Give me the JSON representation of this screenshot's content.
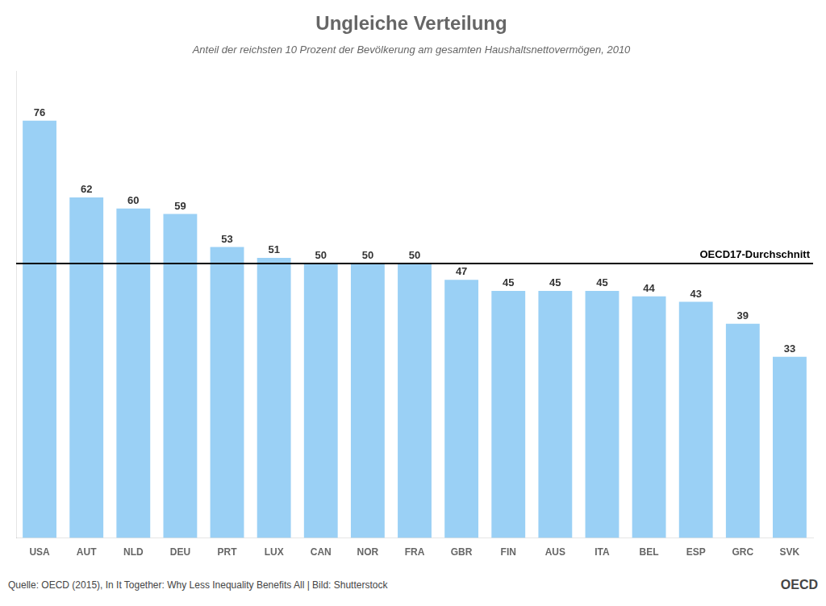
{
  "chart_data": {
    "type": "bar",
    "title": "Ungleiche Verteilung",
    "subtitle": "Anteil der reichsten 10 Prozent der Bevölkerung am gesamten Haushaltsnettovermögen, 2010",
    "categories": [
      "USA",
      "AUT",
      "NLD",
      "DEU",
      "PRT",
      "LUX",
      "CAN",
      "NOR",
      "FRA",
      "GBR",
      "FIN",
      "AUS",
      "ITA",
      "BEL",
      "ESP",
      "GRC",
      "SVK"
    ],
    "values": [
      76,
      62,
      60,
      59,
      53,
      51,
      50,
      50,
      50,
      47,
      45,
      45,
      45,
      44,
      43,
      39,
      33
    ],
    "ylim": [
      0,
      85
    ],
    "grid": false,
    "tick_labels": "x",
    "data_labels": true,
    "annotations": [
      {
        "y": 50,
        "text": "OECD17-Durchschnitt",
        "color": "#000000"
      },
      {
        "text": "Quelle: OECD (2015), In It Together: Why Less Inequality Benefits All | Bild: Shutterstock"
      },
      {
        "text": "OECD"
      }
    ]
  }
}
